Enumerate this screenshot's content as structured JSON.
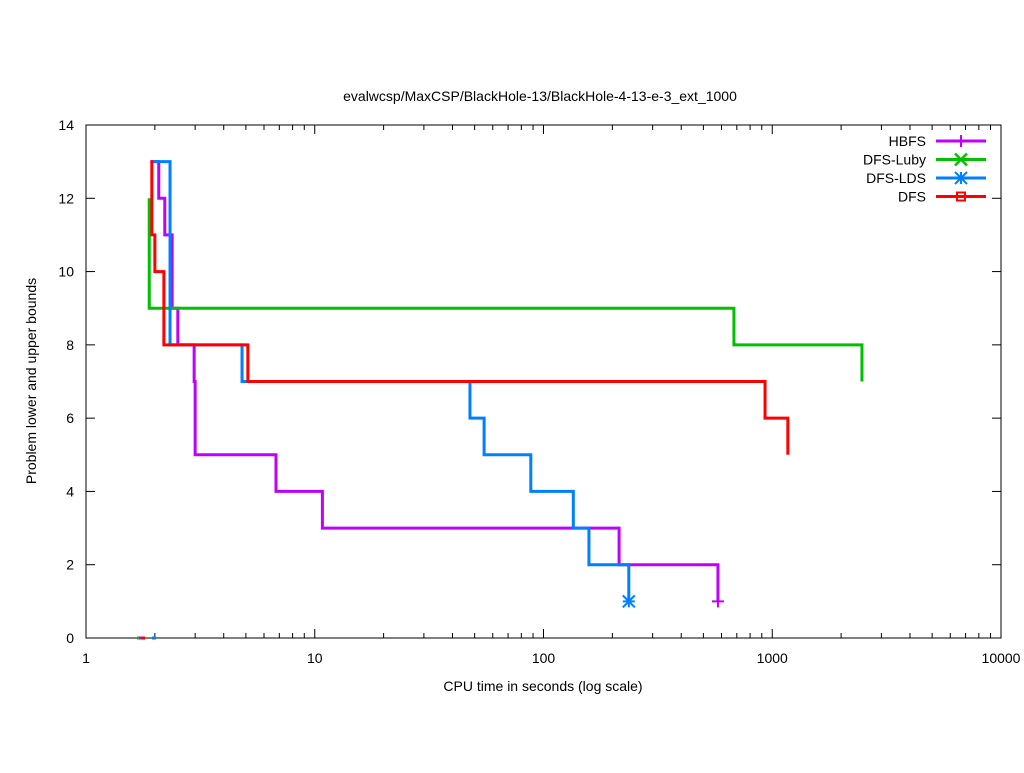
{
  "chart_data": {
    "type": "line",
    "title": "evalwcsp/MaxCSP/BlackHole-13/BlackHole-4-13-e-3_ext_1000",
    "xlabel": "CPU time in seconds (log scale)",
    "ylabel": "Problem lower and upper bounds",
    "xscale": "log",
    "xlim": [
      1,
      10000
    ],
    "ylim": [
      0,
      14
    ],
    "xticks": [
      1,
      10,
      100,
      1000,
      10000
    ],
    "xtick_labels": [
      "1",
      "10",
      "100",
      "1000",
      "10000"
    ],
    "yticks": [
      0,
      2,
      4,
      6,
      8,
      10,
      12,
      14
    ],
    "ytick_labels": [
      "0",
      "2",
      "4",
      "6",
      "8",
      "10",
      "12",
      "14"
    ],
    "legend_position": "top-right",
    "series": [
      {
        "name": "HBFS",
        "color": "#c000ff",
        "marker": "plus",
        "step": true,
        "points": [
          [
            1.91,
            13
          ],
          [
            2.08,
            12
          ],
          [
            2.21,
            11
          ],
          [
            2.38,
            9
          ],
          [
            2.52,
            8
          ],
          [
            2.97,
            7
          ],
          [
            3.0,
            5
          ],
          [
            6.77,
            4
          ],
          [
            10.8,
            3
          ],
          [
            214,
            2
          ],
          [
            579,
            1
          ]
        ],
        "end_marker": [
          579,
          1
        ]
      },
      {
        "name": "DFS-Luby",
        "color": "#00c000",
        "marker": "cross",
        "step": true,
        "points": [
          [
            1.89,
            12
          ],
          [
            1.89,
            9
          ],
          [
            680,
            8
          ],
          [
            2467,
            7
          ]
        ]
      },
      {
        "name": "DFS-LDS",
        "color": "#0080ff",
        "marker": "star",
        "step": true,
        "points": [
          [
            1.94,
            13
          ],
          [
            2.33,
            8
          ],
          [
            4.81,
            7
          ],
          [
            47.7,
            6
          ],
          [
            55,
            5
          ],
          [
            88,
            4
          ],
          [
            135,
            3
          ],
          [
            158,
            2
          ],
          [
            236,
            1
          ]
        ],
        "end_marker": [
          236,
          1
        ]
      },
      {
        "name": "DFS",
        "color": "#ff0000",
        "marker": "square",
        "step": true,
        "points": [
          [
            1.92,
            13
          ],
          [
            1.94,
            11
          ],
          [
            2.0,
            10
          ],
          [
            2.19,
            9
          ],
          [
            2.19,
            8
          ],
          [
            5.1,
            7
          ],
          [
            930,
            6
          ],
          [
            1170,
            5
          ]
        ]
      }
    ]
  }
}
